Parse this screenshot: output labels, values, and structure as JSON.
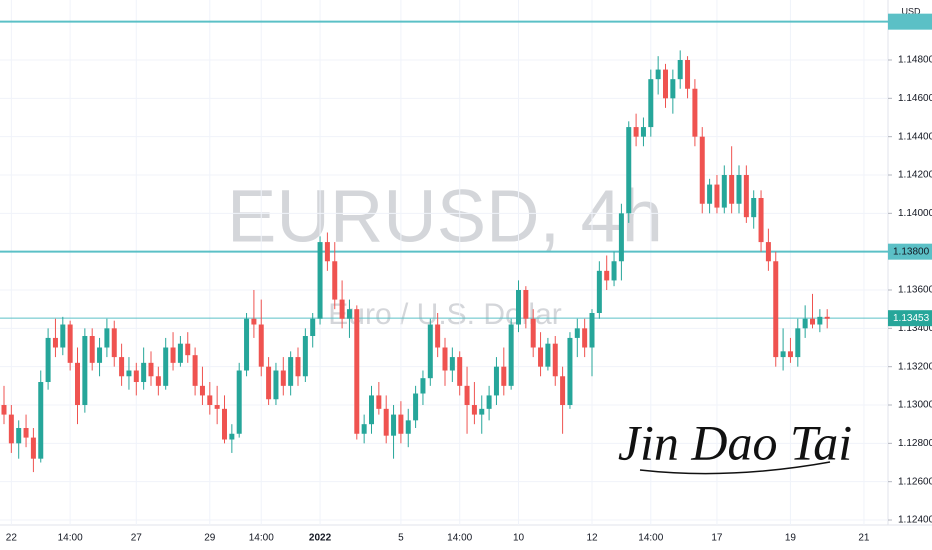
{
  "chart_data": {
    "type": "candlestick",
    "title": "EURUSD, 4h",
    "subtitle": "Euro / U.S. Dollar",
    "currency": "USD",
    "signature": "Jin Dao Tai",
    "up_color": "#26a69a",
    "down_color": "#ef5350",
    "ylim": [
      1.12374,
      1.15113
    ],
    "yticks": [
      {
        "value": 1.124,
        "label": "1.12400"
      },
      {
        "value": 1.126,
        "label": "1.12600"
      },
      {
        "value": 1.128,
        "label": "1.12800"
      },
      {
        "value": 1.13,
        "label": "1.13000"
      },
      {
        "value": 1.132,
        "label": "1.13200"
      },
      {
        "value": 1.134,
        "label": "1.13400"
      },
      {
        "value": 1.136,
        "label": "1.13600"
      },
      {
        "value": 1.138,
        "label": "1.13800"
      },
      {
        "value": 1.14,
        "label": "1.14000"
      },
      {
        "value": 1.142,
        "label": "1.14200"
      },
      {
        "value": 1.144,
        "label": "1.14400"
      },
      {
        "value": 1.146,
        "label": "1.14600"
      },
      {
        "value": 1.148,
        "label": "1.14800"
      }
    ],
    "xticks": [
      {
        "value": 1,
        "label": "22"
      },
      {
        "value": 9,
        "label": "14:00"
      },
      {
        "value": 18,
        "label": "27"
      },
      {
        "value": 28,
        "label": "29"
      },
      {
        "value": 35,
        "label": "14:00"
      },
      {
        "value": 43,
        "label": "2022"
      },
      {
        "value": 54,
        "label": "5"
      },
      {
        "value": 62,
        "label": "14:00"
      },
      {
        "value": 70,
        "label": "10"
      },
      {
        "value": 80,
        "label": "12"
      },
      {
        "value": 88,
        "label": "14:00"
      },
      {
        "value": 97,
        "label": "17"
      },
      {
        "value": 107,
        "label": "19"
      },
      {
        "value": 117,
        "label": "21"
      }
    ],
    "levels": [
      {
        "value": 1.15,
        "color": "#5bc0c6"
      },
      {
        "value": 1.138,
        "label": "1.13800",
        "color": "#5bc0c6"
      }
    ],
    "last_price": {
      "value": 1.13453,
      "color": "#26a69a"
    },
    "ohlc": [
      [
        1.13,
        1.131,
        1.129,
        1.1295
      ],
      [
        1.1295,
        1.13,
        1.1275,
        1.128
      ],
      [
        1.128,
        1.1292,
        1.1272,
        1.1288
      ],
      [
        1.1288,
        1.1295,
        1.1278,
        1.1283
      ],
      [
        1.1283,
        1.1288,
        1.1265,
        1.1272
      ],
      [
        1.1272,
        1.1318,
        1.127,
        1.1312
      ],
      [
        1.1312,
        1.134,
        1.1308,
        1.1335
      ],
      [
        1.1335,
        1.1345,
        1.1325,
        1.133
      ],
      [
        1.133,
        1.1346,
        1.1326,
        1.1342
      ],
      [
        1.1342,
        1.1344,
        1.1318,
        1.1322
      ],
      [
        1.1322,
        1.133,
        1.129,
        1.13
      ],
      [
        1.13,
        1.134,
        1.1296,
        1.1336
      ],
      [
        1.1336,
        1.134,
        1.1318,
        1.1322
      ],
      [
        1.1322,
        1.1335,
        1.1315,
        1.133
      ],
      [
        1.133,
        1.1345,
        1.1325,
        1.134
      ],
      [
        1.134,
        1.1344,
        1.132,
        1.1325
      ],
      [
        1.1325,
        1.1332,
        1.131,
        1.1315
      ],
      [
        1.1315,
        1.1325,
        1.1308,
        1.1318
      ],
      [
        1.1318,
        1.1322,
        1.1305,
        1.1312
      ],
      [
        1.1312,
        1.133,
        1.1308,
        1.1322
      ],
      [
        1.1322,
        1.1328,
        1.131,
        1.1315
      ],
      [
        1.1315,
        1.132,
        1.1305,
        1.131
      ],
      [
        1.131,
        1.1335,
        1.1308,
        1.133
      ],
      [
        1.133,
        1.1338,
        1.1318,
        1.1322
      ],
      [
        1.1322,
        1.1336,
        1.132,
        1.1332
      ],
      [
        1.1332,
        1.1338,
        1.1322,
        1.1326
      ],
      [
        1.1326,
        1.133,
        1.1305,
        1.131
      ],
      [
        1.131,
        1.132,
        1.13,
        1.1305
      ],
      [
        1.1305,
        1.1312,
        1.1295,
        1.13
      ],
      [
        1.13,
        1.131,
        1.129,
        1.1298
      ],
      [
        1.1298,
        1.1305,
        1.128,
        1.1282
      ],
      [
        1.1282,
        1.129,
        1.1275,
        1.1285
      ],
      [
        1.1285,
        1.1322,
        1.1283,
        1.1318
      ],
      [
        1.1318,
        1.1348,
        1.1315,
        1.1345
      ],
      [
        1.1345,
        1.136,
        1.1335,
        1.1342
      ],
      [
        1.1342,
        1.1355,
        1.1315,
        1.132
      ],
      [
        1.132,
        1.1325,
        1.13,
        1.1303
      ],
      [
        1.1303,
        1.1322,
        1.13,
        1.1318
      ],
      [
        1.1318,
        1.1325,
        1.1305,
        1.131
      ],
      [
        1.131,
        1.1328,
        1.1305,
        1.1325
      ],
      [
        1.1325,
        1.133,
        1.131,
        1.1315
      ],
      [
        1.1315,
        1.134,
        1.1312,
        1.1336
      ],
      [
        1.1336,
        1.1348,
        1.133,
        1.1345
      ],
      [
        1.1345,
        1.1388,
        1.1342,
        1.1385
      ],
      [
        1.1385,
        1.139,
        1.137,
        1.1375
      ],
      [
        1.1375,
        1.1385,
        1.135,
        1.1355
      ],
      [
        1.1355,
        1.1365,
        1.134,
        1.1345
      ],
      [
        1.1345,
        1.1355,
        1.1335,
        1.135
      ],
      [
        1.135,
        1.1352,
        1.1282,
        1.1285
      ],
      [
        1.1285,
        1.1295,
        1.128,
        1.129
      ],
      [
        1.129,
        1.131,
        1.1285,
        1.1305
      ],
      [
        1.1305,
        1.1312,
        1.1295,
        1.1298
      ],
      [
        1.1298,
        1.1305,
        1.128,
        1.1284
      ],
      [
        1.1284,
        1.13,
        1.1272,
        1.1295
      ],
      [
        1.1295,
        1.1302,
        1.128,
        1.1285
      ],
      [
        1.1285,
        1.1298,
        1.1278,
        1.1292
      ],
      [
        1.1292,
        1.131,
        1.1288,
        1.1306
      ],
      [
        1.1306,
        1.1318,
        1.13,
        1.1314
      ],
      [
        1.1314,
        1.1345,
        1.131,
        1.1342
      ],
      [
        1.1342,
        1.1348,
        1.1325,
        1.133
      ],
      [
        1.133,
        1.1335,
        1.131,
        1.1318
      ],
      [
        1.1318,
        1.133,
        1.1312,
        1.1325
      ],
      [
        1.1325,
        1.1328,
        1.1305,
        1.131
      ],
      [
        1.131,
        1.132,
        1.1285,
        1.13
      ],
      [
        1.13,
        1.1312,
        1.129,
        1.1295
      ],
      [
        1.1295,
        1.1305,
        1.1285,
        1.1298
      ],
      [
        1.1298,
        1.131,
        1.1292,
        1.1305
      ],
      [
        1.1305,
        1.1325,
        1.13,
        1.132
      ],
      [
        1.132,
        1.133,
        1.1305,
        1.131
      ],
      [
        1.131,
        1.1345,
        1.1308,
        1.1342
      ],
      [
        1.1342,
        1.1365,
        1.1338,
        1.136
      ],
      [
        1.136,
        1.1362,
        1.134,
        1.1345
      ],
      [
        1.1345,
        1.135,
        1.1325,
        1.133
      ],
      [
        1.133,
        1.1338,
        1.1315,
        1.132
      ],
      [
        1.132,
        1.1335,
        1.1318,
        1.1332
      ],
      [
        1.1332,
        1.1336,
        1.131,
        1.1315
      ],
      [
        1.1315,
        1.132,
        1.1285,
        1.13
      ],
      [
        1.13,
        1.1338,
        1.1298,
        1.1335
      ],
      [
        1.1335,
        1.1345,
        1.1325,
        1.134
      ],
      [
        1.134,
        1.1345,
        1.1325,
        1.133
      ],
      [
        1.133,
        1.135,
        1.1315,
        1.1348
      ],
      [
        1.1348,
        1.1375,
        1.1345,
        1.137
      ],
      [
        1.137,
        1.1378,
        1.136,
        1.1365
      ],
      [
        1.1365,
        1.138,
        1.1362,
        1.1375
      ],
      [
        1.1375,
        1.1405,
        1.1365,
        1.14
      ],
      [
        1.14,
        1.1448,
        1.1395,
        1.1445
      ],
      [
        1.1445,
        1.1452,
        1.1435,
        1.144
      ],
      [
        1.144,
        1.145,
        1.1435,
        1.1445
      ],
      [
        1.1445,
        1.1475,
        1.144,
        1.147
      ],
      [
        1.147,
        1.1482,
        1.1462,
        1.1475
      ],
      [
        1.1475,
        1.1478,
        1.1455,
        1.146
      ],
      [
        1.146,
        1.1475,
        1.1452,
        1.147
      ],
      [
        1.147,
        1.1485,
        1.1465,
        1.148
      ],
      [
        1.148,
        1.1482,
        1.146,
        1.1465
      ],
      [
        1.1465,
        1.147,
        1.1435,
        1.144
      ],
      [
        1.144,
        1.1445,
        1.14,
        1.1405
      ],
      [
        1.1405,
        1.1418,
        1.14,
        1.1415
      ],
      [
        1.1415,
        1.142,
        1.14,
        1.1403
      ],
      [
        1.1403,
        1.1425,
        1.14,
        1.142
      ],
      [
        1.142,
        1.1435,
        1.14,
        1.1405
      ],
      [
        1.1405,
        1.1425,
        1.14,
        1.142
      ],
      [
        1.142,
        1.1425,
        1.1395,
        1.1398
      ],
      [
        1.1398,
        1.1412,
        1.1392,
        1.1408
      ],
      [
        1.1408,
        1.1412,
        1.138,
        1.1385
      ],
      [
        1.1385,
        1.1392,
        1.137,
        1.1375
      ],
      [
        1.1375,
        1.138,
        1.132,
        1.1325
      ],
      [
        1.1325,
        1.134,
        1.1318,
        1.1328
      ],
      [
        1.1328,
        1.1335,
        1.1322,
        1.1325
      ],
      [
        1.1325,
        1.1345,
        1.132,
        1.134
      ],
      [
        1.134,
        1.1352,
        1.1335,
        1.1345
      ],
      [
        1.1345,
        1.1358,
        1.134,
        1.1342
      ],
      [
        1.1342,
        1.135,
        1.1338,
        1.1346
      ],
      [
        1.1346,
        1.135,
        1.134,
        1.1345
      ]
    ]
  }
}
